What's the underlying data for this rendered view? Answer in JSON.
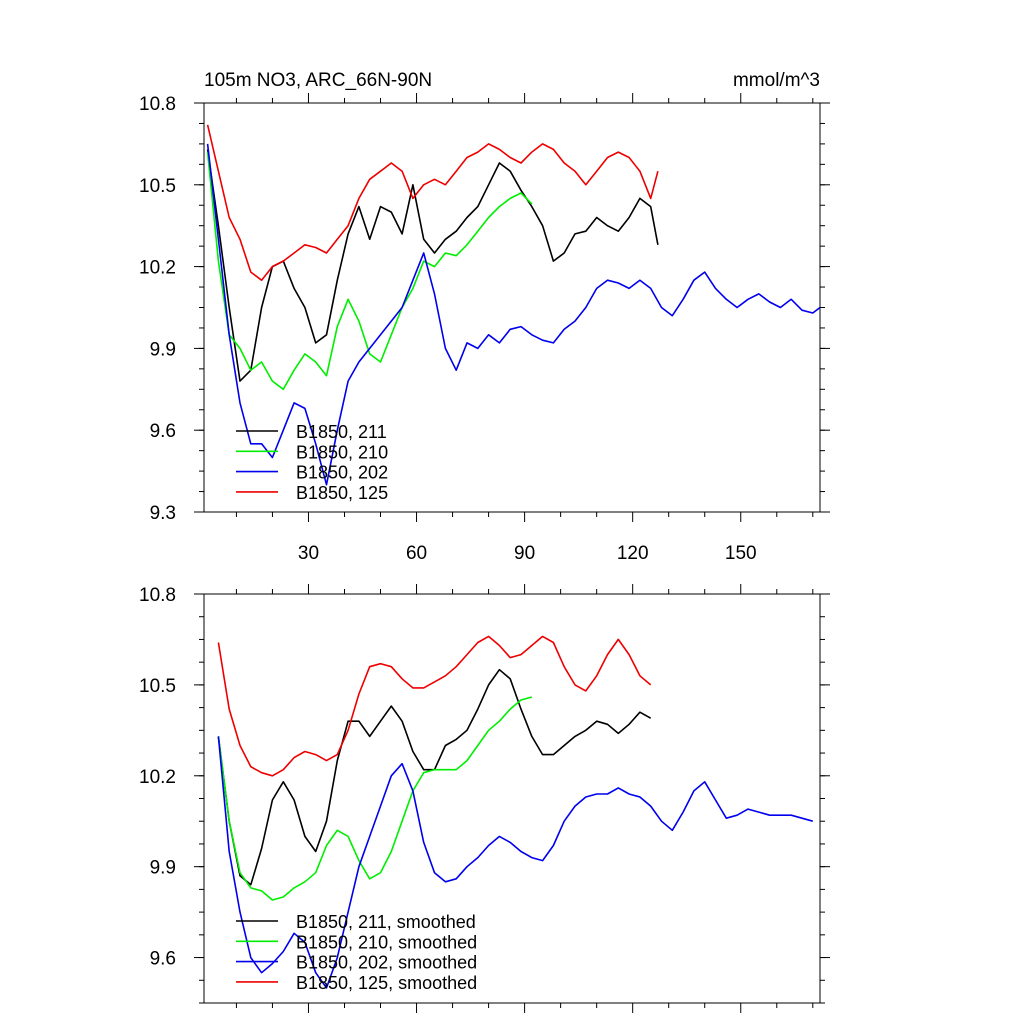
{
  "chart_data": [
    {
      "type": "line",
      "title": "105m NO3, ARC_66N-90N",
      "units": "mmol/m^3",
      "xlim": [
        1,
        172
      ],
      "ylim": [
        9.3,
        10.8
      ],
      "xticks": [
        30,
        60,
        90,
        120,
        150
      ],
      "yticks": [
        9.3,
        9.6,
        9.9,
        10.2,
        10.5,
        10.8
      ],
      "ytick_labels": [
        "9.3",
        "9.6",
        "9.9",
        "10.2",
        "10.5",
        "10.8"
      ],
      "xtick_labels": [
        "30",
        "60",
        "90",
        "120",
        "150"
      ],
      "legend_position": "bottom-left",
      "series": [
        {
          "name": "B1850, 211",
          "color": "#000000",
          "x": [
            2,
            5,
            8,
            11,
            14,
            17,
            20,
            23,
            26,
            29,
            32,
            35,
            38,
            41,
            44,
            47,
            50,
            53,
            56,
            59,
            62,
            65,
            68,
            71,
            74,
            77,
            80,
            83,
            86,
            89,
            92,
            95,
            98,
            101,
            104,
            107,
            110,
            113,
            116,
            119,
            122,
            125,
            127
          ],
          "values": [
            10.63,
            10.35,
            10.05,
            9.78,
            9.82,
            10.05,
            10.2,
            10.22,
            10.12,
            10.05,
            9.92,
            9.95,
            10.15,
            10.32,
            10.42,
            10.3,
            10.42,
            10.4,
            10.32,
            10.5,
            10.3,
            10.25,
            10.3,
            10.33,
            10.38,
            10.42,
            10.5,
            10.58,
            10.55,
            10.48,
            10.42,
            10.35,
            10.22,
            10.25,
            10.32,
            10.33,
            10.38,
            10.35,
            10.33,
            10.38,
            10.45,
            10.42,
            10.28
          ]
        },
        {
          "name": "B1850, 210",
          "color": "#00ee00",
          "x": [
            2,
            5,
            8,
            11,
            14,
            17,
            20,
            23,
            26,
            29,
            32,
            35,
            38,
            41,
            44,
            47,
            50,
            53,
            56,
            59,
            62,
            65,
            68,
            71,
            74,
            77,
            80,
            83,
            86,
            89,
            92
          ],
          "values": [
            10.62,
            10.22,
            9.95,
            9.9,
            9.82,
            9.85,
            9.78,
            9.75,
            9.82,
            9.88,
            9.85,
            9.8,
            9.98,
            10.08,
            10.0,
            9.88,
            9.85,
            9.95,
            10.05,
            10.12,
            10.22,
            10.2,
            10.25,
            10.24,
            10.28,
            10.33,
            10.38,
            10.42,
            10.45,
            10.47,
            10.43
          ]
        },
        {
          "name": "B1850, 202",
          "color": "#0000ee",
          "x": [
            2,
            5,
            8,
            11,
            14,
            17,
            20,
            23,
            26,
            29,
            32,
            35,
            38,
            41,
            44,
            47,
            50,
            53,
            56,
            59,
            62,
            65,
            68,
            71,
            74,
            77,
            80,
            83,
            86,
            89,
            92,
            95,
            98,
            101,
            104,
            107,
            110,
            113,
            116,
            119,
            122,
            125,
            128,
            131,
            134,
            137,
            140,
            143,
            146,
            149,
            152,
            155,
            158,
            161,
            164,
            167,
            170,
            172
          ],
          "values": [
            10.65,
            10.3,
            9.95,
            9.7,
            9.55,
            9.55,
            9.5,
            9.6,
            9.7,
            9.68,
            9.55,
            9.4,
            9.6,
            9.78,
            9.85,
            9.9,
            9.95,
            10.0,
            10.05,
            10.15,
            10.25,
            10.1,
            9.9,
            9.82,
            9.92,
            9.9,
            9.95,
            9.92,
            9.97,
            9.98,
            9.95,
            9.93,
            9.92,
            9.97,
            10.0,
            10.05,
            10.12,
            10.15,
            10.14,
            10.12,
            10.15,
            10.12,
            10.05,
            10.02,
            10.08,
            10.15,
            10.18,
            10.12,
            10.08,
            10.05,
            10.08,
            10.1,
            10.07,
            10.05,
            10.08,
            10.04,
            10.03,
            10.05
          ]
        },
        {
          "name": "B1850, 125",
          "color": "#ee0000",
          "x": [
            2,
            5,
            8,
            11,
            14,
            17,
            20,
            23,
            26,
            29,
            32,
            35,
            38,
            41,
            44,
            47,
            50,
            53,
            56,
            59,
            62,
            65,
            68,
            71,
            74,
            77,
            80,
            83,
            86,
            89,
            92,
            95,
            98,
            101,
            104,
            107,
            110,
            113,
            116,
            119,
            122,
            125,
            127
          ],
          "values": [
            10.72,
            10.55,
            10.38,
            10.3,
            10.18,
            10.15,
            10.2,
            10.22,
            10.25,
            10.28,
            10.27,
            10.25,
            10.3,
            10.35,
            10.45,
            10.52,
            10.55,
            10.58,
            10.55,
            10.45,
            10.5,
            10.52,
            10.5,
            10.55,
            10.6,
            10.62,
            10.65,
            10.63,
            10.6,
            10.58,
            10.62,
            10.65,
            10.63,
            10.58,
            10.55,
            10.5,
            10.55,
            10.6,
            10.62,
            10.6,
            10.55,
            10.45,
            10.55
          ]
        }
      ]
    },
    {
      "type": "line",
      "title": "",
      "xlim": [
        1,
        172
      ],
      "ylim": [
        9.45,
        10.8
      ],
      "xticks": [
        10,
        30,
        60,
        90,
        120,
        150
      ],
      "yticks": [
        9.6,
        9.9,
        10.2,
        10.5,
        10.8
      ],
      "ytick_labels": [
        "9.6",
        "9.9",
        "10.2",
        "10.5",
        "10.8"
      ],
      "legend_position": "bottom-left",
      "series": [
        {
          "name": "B1850, 211, smoothed",
          "color": "#000000",
          "x": [
            5,
            8,
            11,
            14,
            17,
            20,
            23,
            26,
            29,
            32,
            35,
            38,
            41,
            44,
            47,
            50,
            53,
            56,
            59,
            62,
            65,
            68,
            71,
            74,
            77,
            80,
            83,
            86,
            89,
            92,
            95,
            98,
            101,
            104,
            107,
            110,
            113,
            116,
            119,
            122,
            125
          ],
          "values": [
            10.33,
            10.05,
            9.87,
            9.84,
            9.96,
            10.12,
            10.18,
            10.12,
            10.0,
            9.95,
            10.05,
            10.25,
            10.38,
            10.38,
            10.33,
            10.38,
            10.43,
            10.38,
            10.28,
            10.22,
            10.22,
            10.3,
            10.32,
            10.35,
            10.42,
            10.5,
            10.55,
            10.52,
            10.42,
            10.33,
            10.27,
            10.27,
            10.3,
            10.33,
            10.35,
            10.38,
            10.37,
            10.34,
            10.37,
            10.41,
            10.39
          ]
        },
        {
          "name": "B1850, 210, smoothed",
          "color": "#00ee00",
          "x": [
            5,
            8,
            11,
            14,
            17,
            20,
            23,
            26,
            29,
            32,
            35,
            38,
            41,
            44,
            47,
            50,
            53,
            56,
            59,
            62,
            65,
            68,
            71,
            74,
            77,
            80,
            83,
            86,
            89,
            92
          ],
          "values": [
            10.33,
            10.05,
            9.88,
            9.83,
            9.82,
            9.79,
            9.8,
            9.83,
            9.85,
            9.88,
            9.97,
            10.02,
            10.0,
            9.92,
            9.86,
            9.88,
            9.95,
            10.05,
            10.15,
            10.21,
            10.22,
            10.22,
            10.22,
            10.25,
            10.3,
            10.35,
            10.38,
            10.42,
            10.45,
            10.46
          ]
        },
        {
          "name": "B1850, 202, smoothed",
          "color": "#0000ee",
          "x": [
            5,
            8,
            11,
            14,
            17,
            20,
            23,
            26,
            29,
            32,
            35,
            38,
            41,
            44,
            47,
            50,
            53,
            56,
            59,
            62,
            65,
            68,
            71,
            74,
            77,
            80,
            83,
            86,
            89,
            92,
            95,
            98,
            101,
            104,
            107,
            110,
            113,
            116,
            119,
            122,
            125,
            128,
            131,
            134,
            137,
            140,
            143,
            146,
            149,
            152,
            155,
            158,
            161,
            164,
            167,
            170
          ],
          "values": [
            10.33,
            9.95,
            9.75,
            9.6,
            9.55,
            9.58,
            9.62,
            9.68,
            9.65,
            9.55,
            9.5,
            9.6,
            9.75,
            9.9,
            10.0,
            10.1,
            10.2,
            10.24,
            10.15,
            9.98,
            9.88,
            9.85,
            9.86,
            9.9,
            9.93,
            9.97,
            10.0,
            9.98,
            9.95,
            9.93,
            9.92,
            9.97,
            10.05,
            10.1,
            10.13,
            10.14,
            10.14,
            10.16,
            10.14,
            10.13,
            10.1,
            10.05,
            10.02,
            10.08,
            10.15,
            10.18,
            10.12,
            10.06,
            10.07,
            10.09,
            10.08,
            10.07,
            10.07,
            10.07,
            10.06,
            10.05
          ]
        },
        {
          "name": "B1850, 125, smoothed",
          "color": "#ee0000",
          "x": [
            5,
            8,
            11,
            14,
            17,
            20,
            23,
            26,
            29,
            32,
            35,
            38,
            41,
            44,
            47,
            50,
            53,
            56,
            59,
            62,
            65,
            68,
            71,
            74,
            77,
            80,
            83,
            86,
            89,
            92,
            95,
            98,
            101,
            104,
            107,
            110,
            113,
            116,
            119,
            122,
            125
          ],
          "values": [
            10.64,
            10.42,
            10.3,
            10.23,
            10.21,
            10.2,
            10.22,
            10.26,
            10.28,
            10.27,
            10.25,
            10.27,
            10.35,
            10.47,
            10.56,
            10.57,
            10.56,
            10.52,
            10.49,
            10.49,
            10.51,
            10.53,
            10.56,
            10.6,
            10.64,
            10.66,
            10.63,
            10.59,
            10.6,
            10.63,
            10.66,
            10.64,
            10.56,
            10.5,
            10.48,
            10.53,
            10.6,
            10.65,
            10.6,
            10.53,
            10.5
          ]
        }
      ]
    }
  ]
}
